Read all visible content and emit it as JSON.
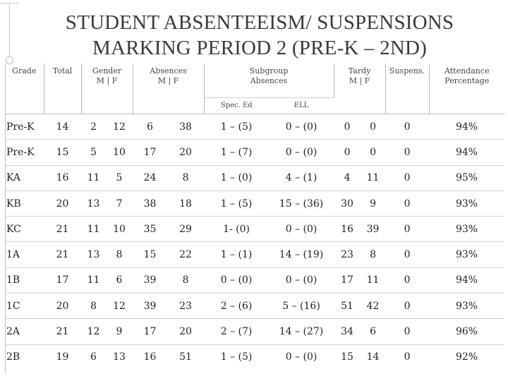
{
  "title": {
    "line1": "STUDENT ABSENTEEISM/ SUSPENSIONS",
    "line2": "MARKING PERIOD 2 (PRE-K – 2ND)"
  },
  "headers": {
    "grade": "Grade",
    "total": "Total",
    "gender": "Gender",
    "gender_mf": "M | F",
    "absences": "Absences",
    "absences_mf": "M | F",
    "subgroup": "Subgroup",
    "subgroup2": "Absences",
    "spec_ed": "Spec. Ed",
    "ell": "ELL",
    "tardy": "Tardy",
    "tardy_mf": "M | F",
    "suspens": "Suspens.",
    "attendance": "Attendance",
    "attendance2": "Percentage"
  },
  "rows": [
    {
      "grade": "Pre-K",
      "total": "14",
      "gm": "2",
      "gf": "12",
      "am": "6",
      "af": "38",
      "sped": "1 – (5)",
      "ell": "0 – (0)",
      "tm": "0",
      "tf": "0",
      "susp": "0",
      "att": "94%"
    },
    {
      "grade": "Pre-K",
      "total": "15",
      "gm": "5",
      "gf": "10",
      "am": "17",
      "af": "20",
      "sped": "1 – (7)",
      "ell": "0 – (0)",
      "tm": "0",
      "tf": "0",
      "susp": "0",
      "att": "94%"
    },
    {
      "grade": "KA",
      "total": "16",
      "gm": "11",
      "gf": "5",
      "am": "24",
      "af": "8",
      "sped": "1 – (0)",
      "ell": "4 – (1)",
      "tm": "4",
      "tf": "11",
      "susp": "0",
      "att": "95%"
    },
    {
      "grade": "KB",
      "total": "20",
      "gm": "13",
      "gf": "7",
      "am": "38",
      "af": "18",
      "sped": "1 – (5)",
      "ell": "15 – (36)",
      "tm": "30",
      "tf": "9",
      "susp": "0",
      "att": "93%"
    },
    {
      "grade": "KC",
      "total": "21",
      "gm": "11",
      "gf": "10",
      "am": "35",
      "af": "29",
      "sped": "1- (0)",
      "ell": "0 – (0)",
      "tm": "16",
      "tf": "39",
      "susp": "0",
      "att": "93%"
    },
    {
      "grade": "1A",
      "total": "21",
      "gm": "13",
      "gf": "8",
      "am": "15",
      "af": "22",
      "sped": "1 – (1)",
      "ell": "14 – (19)",
      "tm": "23",
      "tf": "8",
      "susp": "0",
      "att": "93%"
    },
    {
      "grade": "1B",
      "total": "17",
      "gm": "11",
      "gf": "6",
      "am": "39",
      "af": "8",
      "sped": "0 – (0)",
      "ell": "0 – (0)",
      "tm": "17",
      "tf": "11",
      "susp": "0",
      "att": "94%"
    },
    {
      "grade": "1C",
      "total": "20",
      "gm": "8",
      "gf": "12",
      "am": "39",
      "af": "23",
      "sped": "2 – (6)",
      "ell": "5 – (16)",
      "tm": "51",
      "tf": "42",
      "susp": "0",
      "att": "93%"
    },
    {
      "grade": "2A",
      "total": "21",
      "gm": "12",
      "gf": "9",
      "am": "17",
      "af": "20",
      "sped": "2 – (7)",
      "ell": "14 – (27)",
      "tm": "34",
      "tf": "6",
      "susp": "0",
      "att": "96%"
    },
    {
      "grade": "2B",
      "total": "19",
      "gm": "6",
      "gf": "13",
      "am": "16",
      "af": "51",
      "sped": "1 – (5)",
      "ell": "0 – (0)",
      "tm": "15",
      "tf": "14",
      "susp": "0",
      "att": "92%"
    }
  ]
}
